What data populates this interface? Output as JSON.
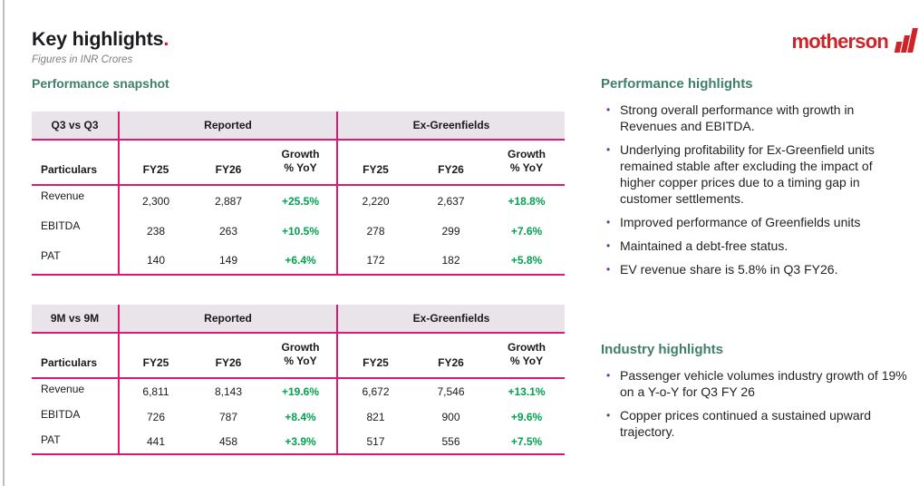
{
  "slide": {
    "title": "Key highlights",
    "title_period": ".",
    "subtitle": "Figures in INR Crores",
    "section_heading": "Performance snapshot"
  },
  "logo": {
    "wordmark": "motherson"
  },
  "tables": [
    {
      "period_label": "Q3 vs Q3",
      "group_headers": [
        "Reported",
        "Ex-Greenfields"
      ],
      "col_headers": [
        "Particulars",
        "FY25",
        "FY26",
        "Growth\n% YoY",
        "FY25",
        "FY26",
        "Growth\n% YoY"
      ],
      "rows": [
        {
          "label": "Revenue",
          "values": [
            "2,300",
            "2,887",
            "+25.5%",
            "2,220",
            "2,637",
            "+18.8%"
          ]
        },
        {
          "label": "EBITDA",
          "values": [
            "238",
            "263",
            "+10.5%",
            "278",
            "299",
            "+7.6%"
          ]
        },
        {
          "label": "PAT",
          "values": [
            "140",
            "149",
            "+6.4%",
            "172",
            "182",
            "+5.8%"
          ]
        }
      ]
    },
    {
      "period_label": "9M vs 9M",
      "group_headers": [
        "Reported",
        "Ex-Greenfields"
      ],
      "col_headers": [
        "Particulars",
        "FY25",
        "FY26",
        "Growth\n% YoY",
        "FY25",
        "FY26",
        "Growth\n% YoY"
      ],
      "rows": [
        {
          "label": "Revenue",
          "values": [
            "6,811",
            "8,143",
            "+19.6%",
            "6,672",
            "7,546",
            "+13.1%"
          ]
        },
        {
          "label": "EBITDA",
          "values": [
            "726",
            "787",
            "+8.4%",
            "821",
            "900",
            "+9.6%"
          ]
        },
        {
          "label": "PAT",
          "values": [
            "441",
            "458",
            "+3.9%",
            "517",
            "556",
            "+7.5%"
          ]
        }
      ]
    }
  ],
  "highlights": [
    {
      "heading": "Performance highlights",
      "bullets": [
        "Strong overall performance with growth in Revenues and EBITDA.",
        "Underlying profitability for Ex-Greenfield units remained stable after excluding the impact of higher copper prices due to a timing gap in customer settlements.",
        "Improved performance of Greenfields units",
        "Maintained a debt-free status.",
        "EV revenue share is 5.8% in Q3 FY26."
      ]
    },
    {
      "heading": "Industry highlights",
      "bullets": [
        "Passenger vehicle volumes industry growth of 19% on a Y-o-Y for Q3 FY 26",
        "Copper prices continued a sustained upward trajectory."
      ]
    }
  ],
  "colors": {
    "brand_pink": "#dd1a73",
    "brand_red": "#ce2329",
    "title_dot_red": "#d6152c",
    "accent_green": "#3f7e6a",
    "growth_green": "#00a24e",
    "bullet_purple": "#7030a0",
    "table_header_fill": "#e9e4e9"
  }
}
